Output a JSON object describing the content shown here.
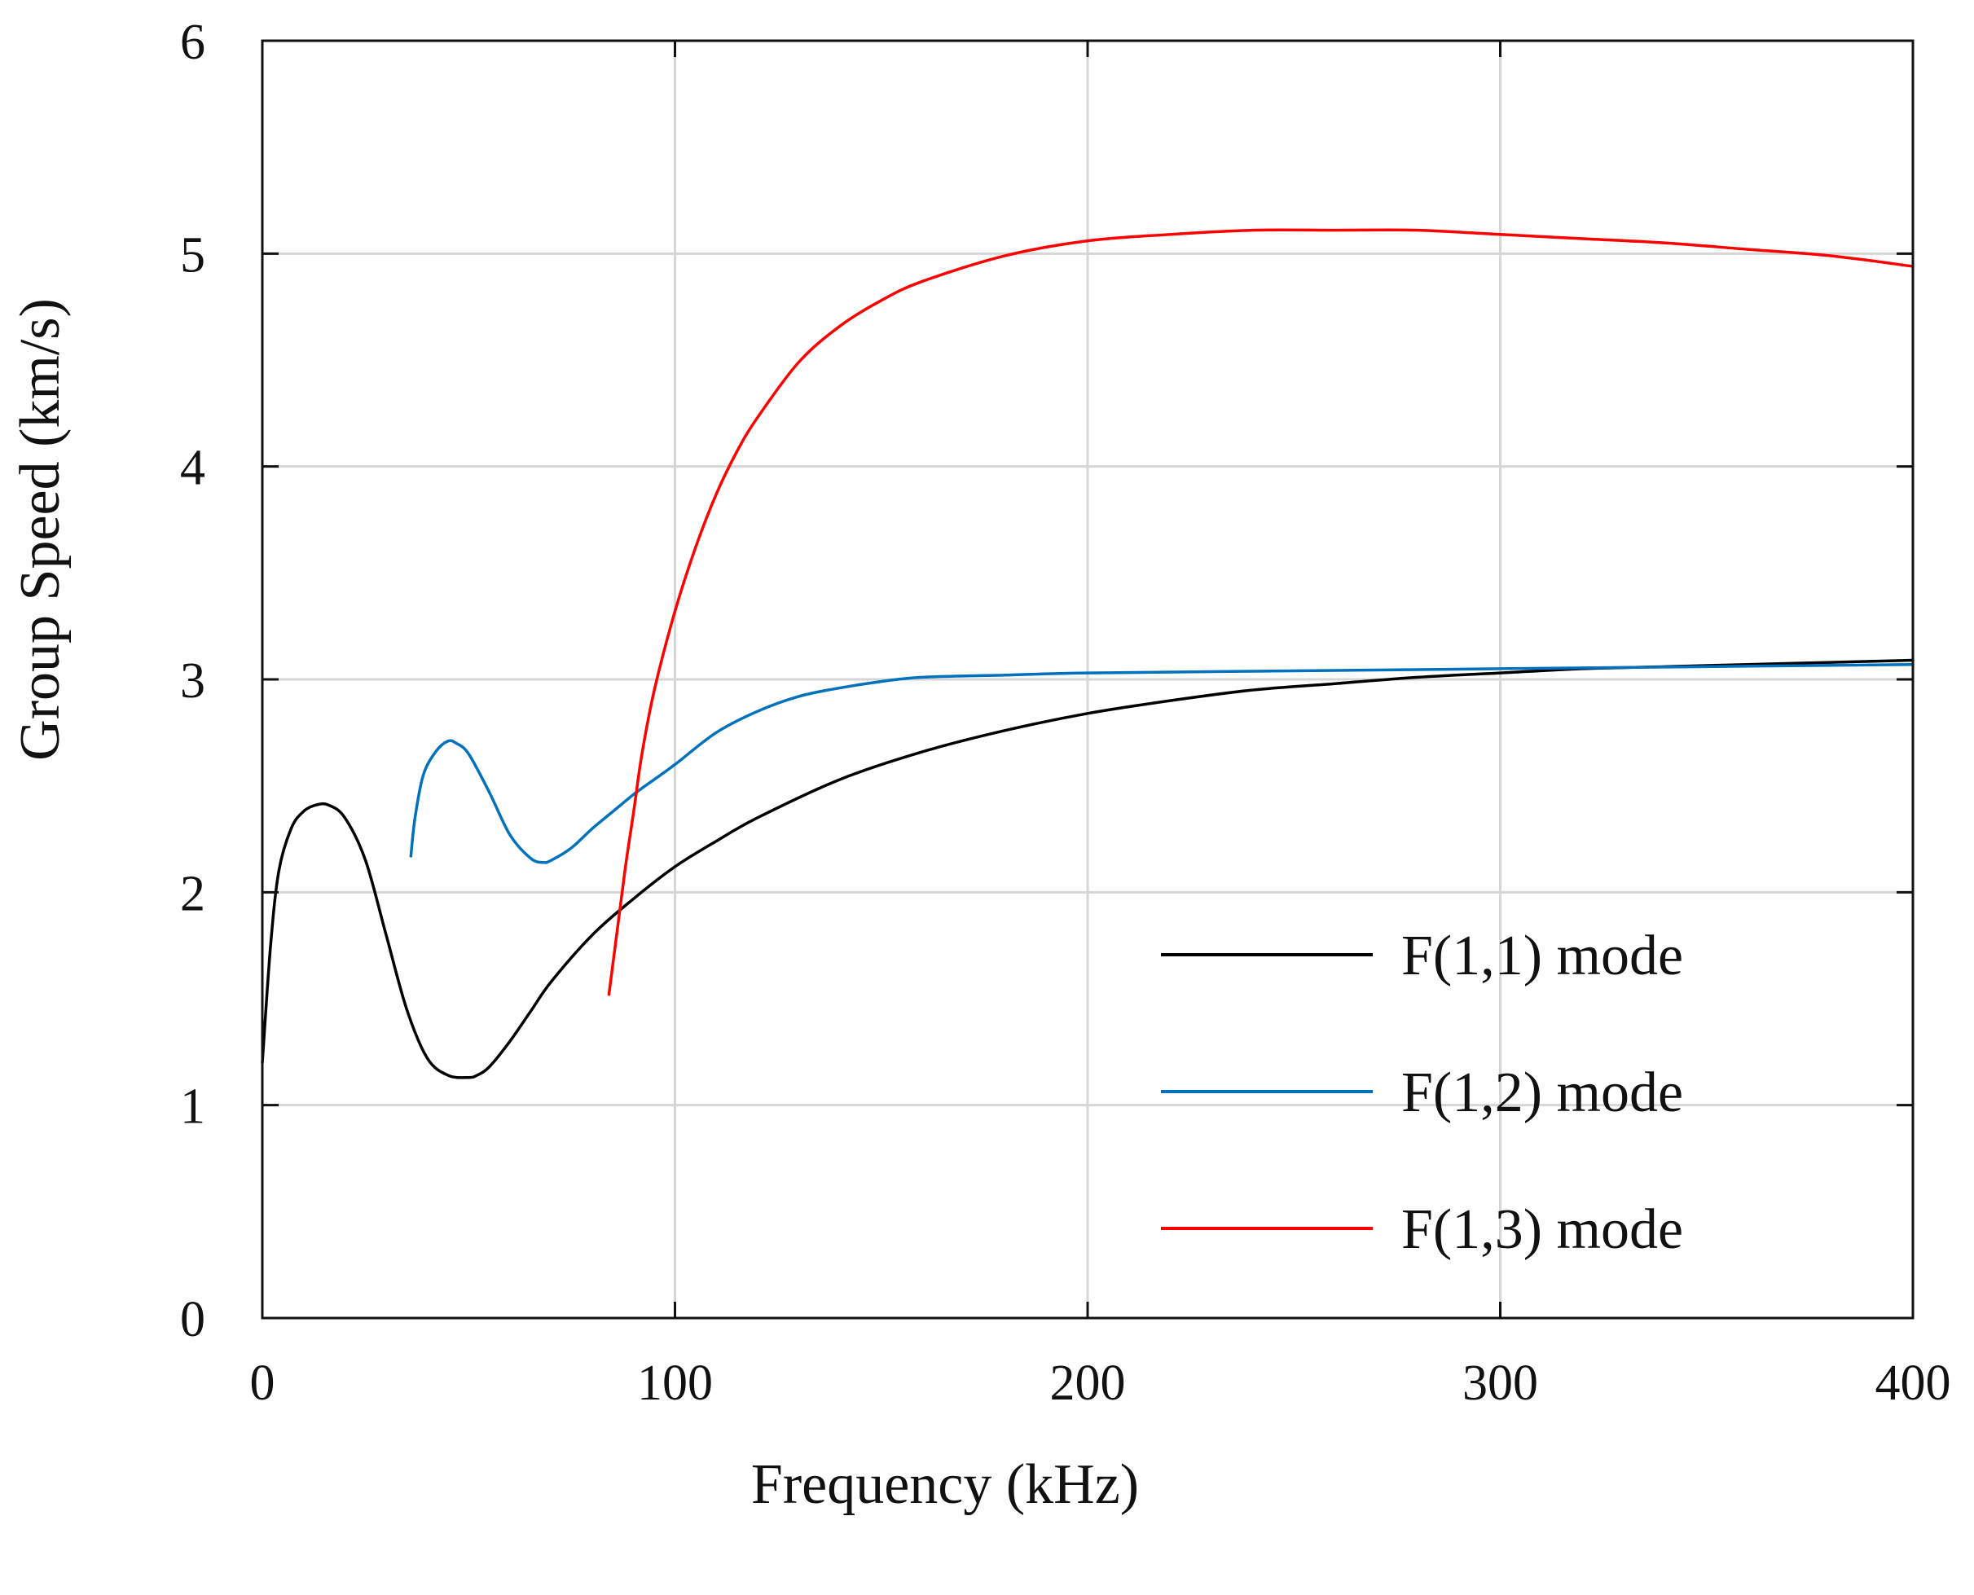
{
  "chart_data": {
    "type": "line",
    "title": "",
    "xlabel": "Frequency (kHz)",
    "ylabel": "Group Speed (km/s)",
    "xlim": [
      0,
      400
    ],
    "ylim": [
      0,
      6
    ],
    "xticks": [
      0,
      100,
      200,
      300,
      400
    ],
    "yticks": [
      0,
      1,
      2,
      3,
      4,
      5,
      6
    ],
    "xtick_labels": [
      "0",
      "100",
      "200",
      "300",
      "400"
    ],
    "ytick_labels": [
      "0",
      "1",
      "2",
      "3",
      "4",
      "5",
      "6"
    ],
    "grid": true,
    "legend_position": "bottom-right",
    "series": [
      {
        "name": "F(1,1) mode",
        "color": "#000000",
        "x": [
          0,
          2,
          4,
          7,
          10,
          13,
          16,
          20,
          25,
          30,
          35,
          40,
          45,
          50,
          52,
          55,
          60,
          65,
          70,
          80,
          90,
          100,
          110,
          120,
          140,
          160,
          180,
          200,
          220,
          240,
          260,
          280,
          300,
          320,
          340,
          360,
          380,
          400
        ],
        "y": [
          1.2,
          1.75,
          2.1,
          2.3,
          2.38,
          2.41,
          2.41,
          2.35,
          2.15,
          1.8,
          1.45,
          1.22,
          1.14,
          1.13,
          1.14,
          1.18,
          1.3,
          1.44,
          1.58,
          1.8,
          1.97,
          2.12,
          2.24,
          2.35,
          2.53,
          2.66,
          2.76,
          2.84,
          2.9,
          2.95,
          2.98,
          3.01,
          3.03,
          3.05,
          3.06,
          3.07,
          3.08,
          3.09
        ]
      },
      {
        "name": "F(1,2) mode",
        "color": "#0072BD",
        "x": [
          36,
          37,
          39,
          42,
          45,
          47,
          50,
          55,
          60,
          65,
          68,
          70,
          75,
          80,
          85,
          90,
          95,
          100,
          110,
          120,
          130,
          140,
          150,
          160,
          180,
          200,
          250,
          300,
          350,
          400
        ],
        "y": [
          2.17,
          2.35,
          2.55,
          2.66,
          2.71,
          2.7,
          2.65,
          2.47,
          2.27,
          2.16,
          2.14,
          2.15,
          2.21,
          2.3,
          2.38,
          2.46,
          2.53,
          2.6,
          2.75,
          2.85,
          2.92,
          2.96,
          2.99,
          3.01,
          3.02,
          3.03,
          3.04,
          3.05,
          3.06,
          3.07
        ]
      },
      {
        "name": "F(1,3) mode",
        "color": "#FF0000",
        "x": [
          84,
          86,
          88,
          90,
          92,
          95,
          100,
          105,
          110,
          115,
          120,
          130,
          140,
          150,
          160,
          180,
          200,
          220,
          240,
          260,
          280,
          300,
          320,
          340,
          360,
          380,
          400
        ],
        "y": [
          1.52,
          1.82,
          2.12,
          2.38,
          2.65,
          2.95,
          3.32,
          3.62,
          3.87,
          4.07,
          4.23,
          4.49,
          4.66,
          4.78,
          4.87,
          4.99,
          5.06,
          5.09,
          5.11,
          5.11,
          5.11,
          5.09,
          5.07,
          5.05,
          5.02,
          4.99,
          4.94
        ]
      }
    ]
  }
}
